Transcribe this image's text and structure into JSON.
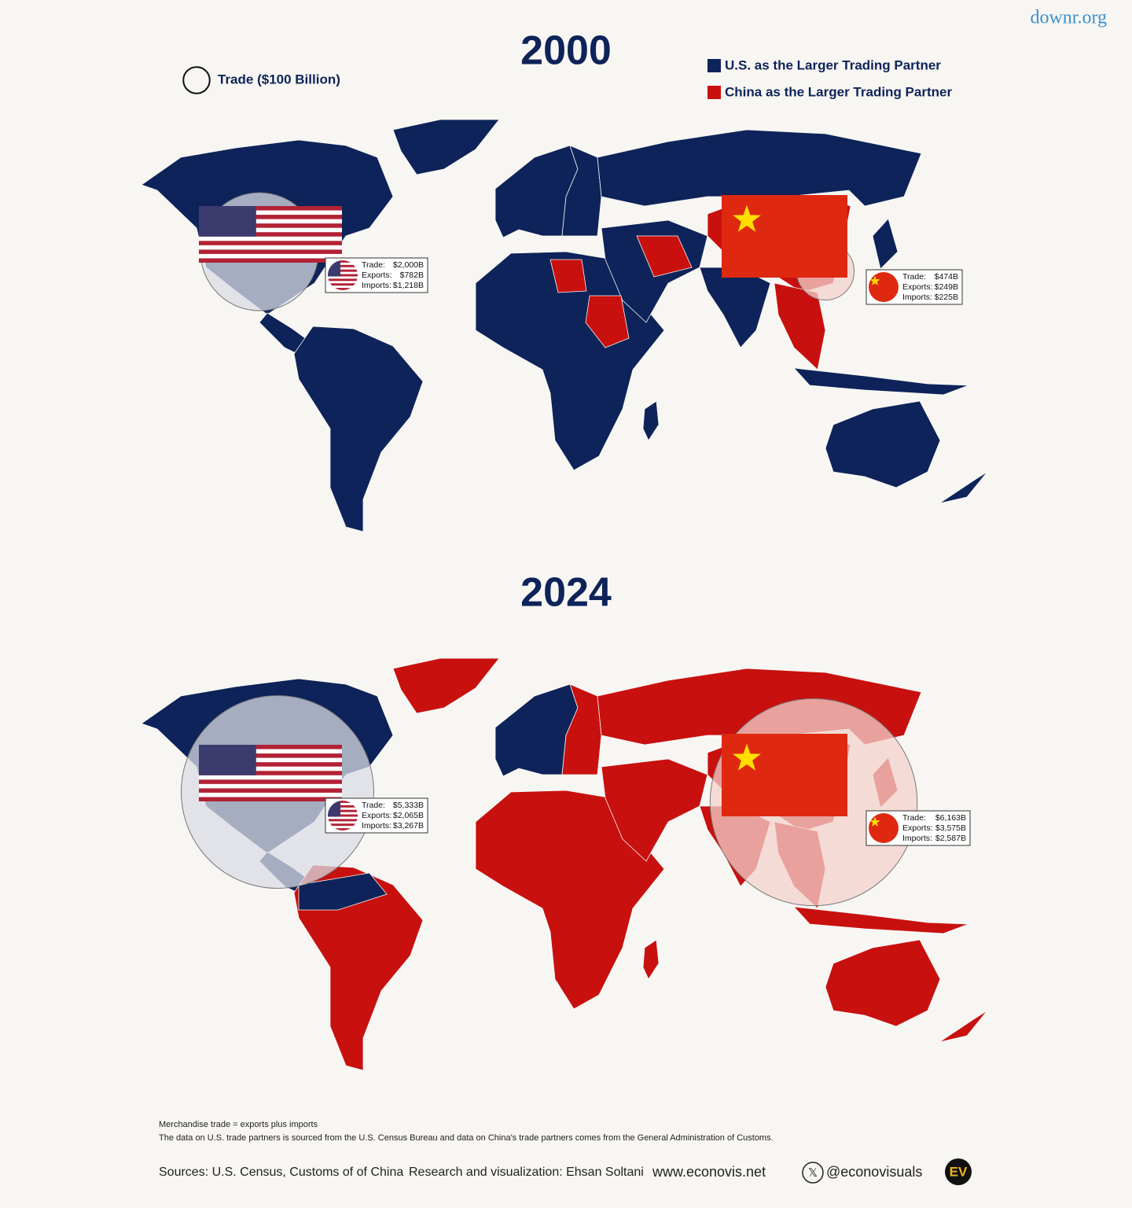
{
  "watermark": "downr.org",
  "legend": {
    "size": {
      "label": "Trade ($100 Billion)",
      "value": 100
    },
    "items": [
      {
        "label": "U.S. as the Larger Trading Partner",
        "color": "#0d2359"
      },
      {
        "label": "China as the Larger Trading Partner",
        "color": "#c8100f"
      }
    ]
  },
  "maps": [
    {
      "year": "2000",
      "callouts": [
        {
          "trade": 2000,
          "rows": [
            {
              "label": "Trade:",
              "value": "$2,000B"
            },
            {
              "label": "Exports:",
              "value": "$782B"
            },
            {
              "label": "Imports:",
              "value": "$1,218B"
            }
          ]
        },
        {
          "trade": 474,
          "rows": [
            {
              "label": "Trade:",
              "value": "$474B"
            },
            {
              "label": "Exports:",
              "value": "$249B"
            },
            {
              "label": "Imports:",
              "value": "$225B"
            }
          ]
        }
      ]
    },
    {
      "year": "2024",
      "callouts": [
        {
          "trade": 5333,
          "rows": [
            {
              "label": "Trade:",
              "value": "$5,333B"
            },
            {
              "label": "Exports:",
              "value": "$2,065B"
            },
            {
              "label": "Imports:",
              "value": "$3,267B"
            }
          ]
        },
        {
          "trade": 6163,
          "rows": [
            {
              "label": "Trade:",
              "value": "$6,163B"
            },
            {
              "label": "Exports:",
              "value": "$3,575B"
            },
            {
              "label": "Imports:",
              "value": "$2,587B"
            }
          ]
        }
      ]
    }
  ],
  "notes": [
    "Merchandise trade = exports plus imports",
    "The data on U.S. trade partners is sourced from the U.S. Census Bureau and data on China's trade partners comes from the General Administration of Customs."
  ],
  "footer": {
    "sources": "Sources: U.S. Census, Customs of of China",
    "credit": "Research and visualization: Ehsan Soltani",
    "website": "www.econovis.net",
    "social": "@econovisuals",
    "logo": "EV"
  }
}
